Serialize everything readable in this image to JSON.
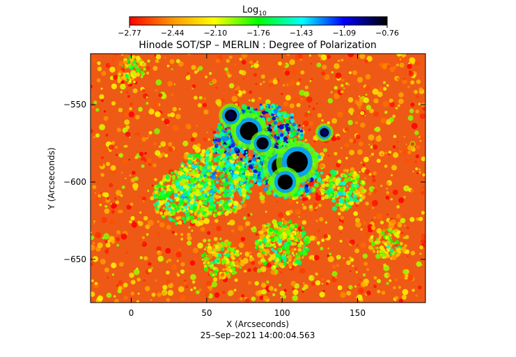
{
  "chart_data": {
    "type": "heatmap",
    "title": "Hinode SOT/SP – MERLIN : Degree of Polarization",
    "xlabel": "X (Arcseconds)",
    "ylabel": "Y (Arcseconds)",
    "timestamp": "25–Sep–2021 14:00:04.563",
    "xlim": [
      -27,
      195
    ],
    "ylim": [
      -678,
      -517
    ],
    "xticks": [
      0,
      50,
      100,
      150
    ],
    "yticks": [
      -550,
      -600,
      -650
    ],
    "colorbar": {
      "title": "Log",
      "title_subscript": "10",
      "range": [
        -2.77,
        -0.76
      ],
      "ticks": [
        "−2.77",
        "−2.44",
        "−2.10",
        "−1.76",
        "−1.43",
        "−1.09",
        "−0.76"
      ],
      "colors": [
        "#ff0000",
        "#ff9900",
        "#ffff00",
        "#00ff00",
        "#00ffff",
        "#0000ff",
        "#000000"
      ]
    },
    "background_level": -2.6,
    "features": [
      {
        "kind": "sunspot",
        "x": 78,
        "y": -567,
        "r": 6,
        "value": -0.76
      },
      {
        "kind": "sunspot",
        "x": 87,
        "y": -575,
        "r": 4,
        "value": -0.8
      },
      {
        "kind": "sunspot",
        "x": 66,
        "y": -557,
        "r": 4,
        "value": -0.85
      },
      {
        "kind": "sunspot",
        "x": 99,
        "y": -590,
        "r": 6,
        "value": -0.76
      },
      {
        "kind": "sunspot",
        "x": 110,
        "y": -587,
        "r": 7,
        "value": -0.76
      },
      {
        "kind": "sunspot",
        "x": 102,
        "y": -600,
        "r": 5,
        "value": -0.76
      },
      {
        "kind": "pore",
        "x": 128,
        "y": -568,
        "r": 3,
        "value": -0.9
      },
      {
        "kind": "plage",
        "x": 85,
        "y": -575,
        "r": 30,
        "value": -1.5
      },
      {
        "kind": "plage",
        "x": 105,
        "y": -592,
        "r": 22,
        "value": -1.6
      },
      {
        "kind": "plage",
        "x": 55,
        "y": -600,
        "r": 25,
        "value": -1.9
      },
      {
        "kind": "plage",
        "x": 35,
        "y": -610,
        "r": 20,
        "value": -2.0
      },
      {
        "kind": "plage",
        "x": 100,
        "y": -640,
        "r": 18,
        "value": -2.1
      },
      {
        "kind": "plage",
        "x": 140,
        "y": -605,
        "r": 15,
        "value": -2.0
      },
      {
        "kind": "network",
        "x": 0,
        "y": -527,
        "r": 10,
        "value": -2.2
      },
      {
        "kind": "network",
        "x": 170,
        "y": -640,
        "r": 12,
        "value": -2.2
      },
      {
        "kind": "network",
        "x": 60,
        "y": -650,
        "r": 14,
        "value": -2.2
      }
    ]
  }
}
